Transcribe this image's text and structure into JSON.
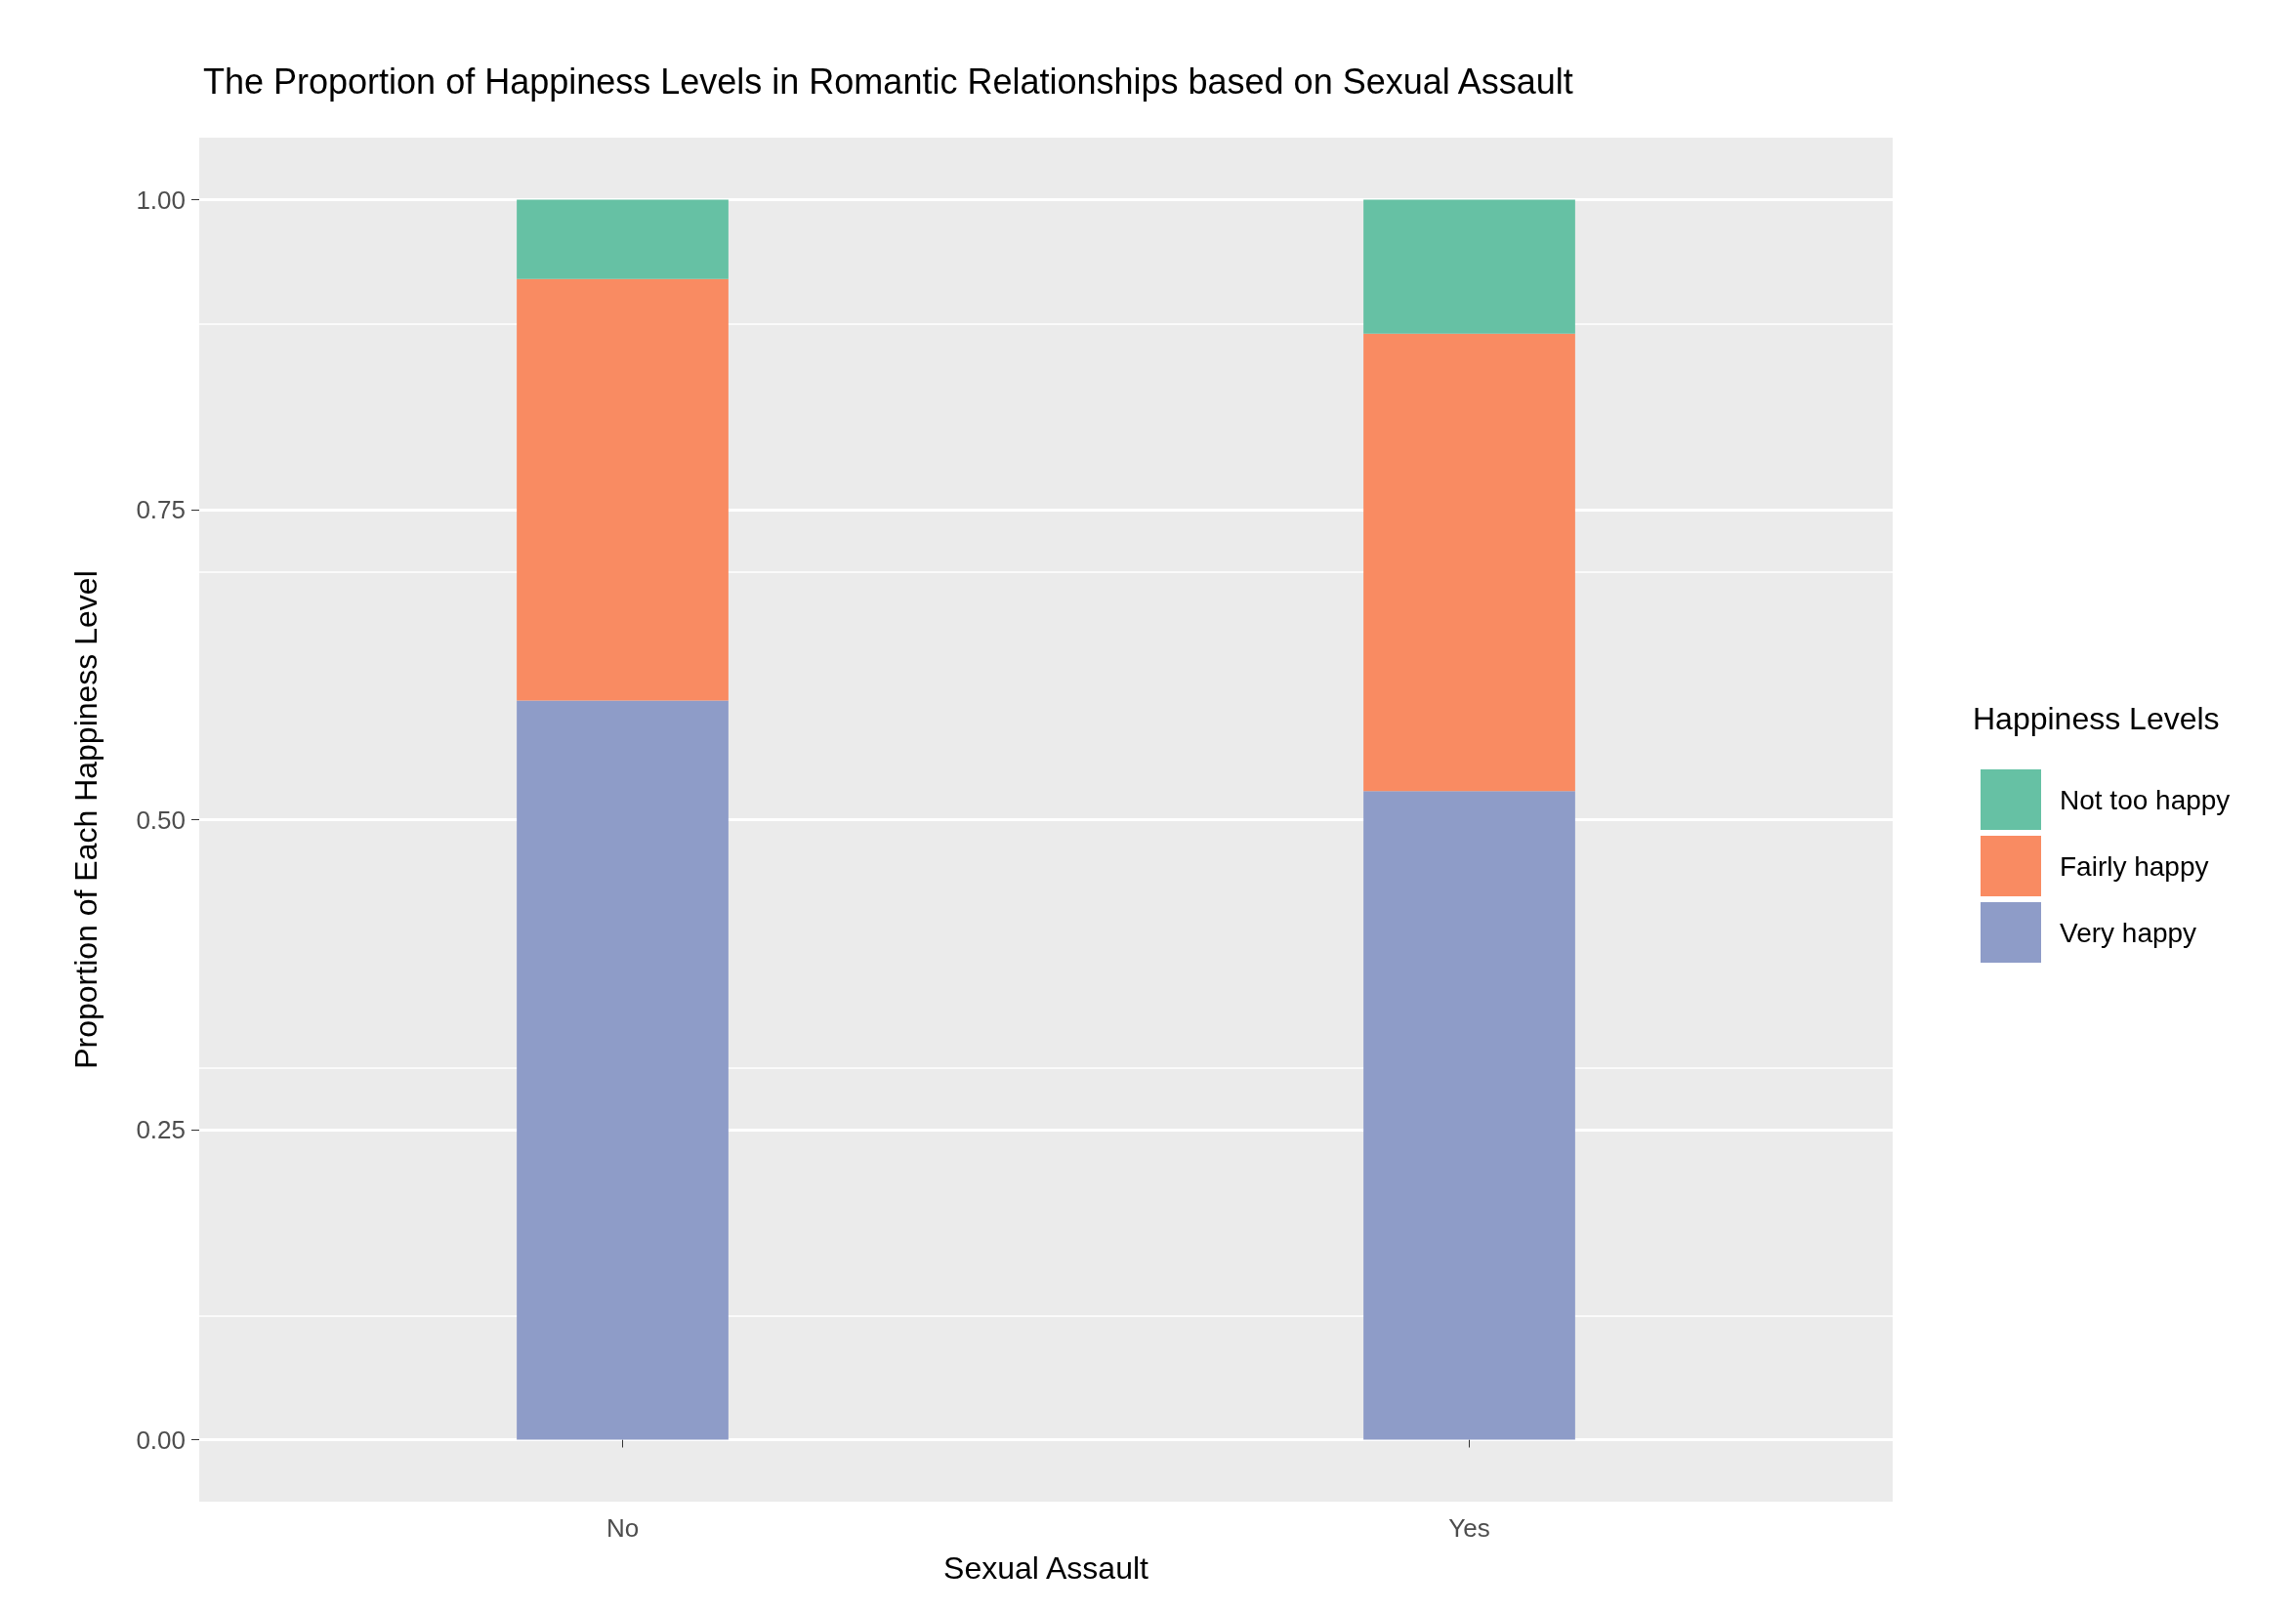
{
  "chart_data": {
    "type": "bar",
    "stacked": true,
    "title": "The Proportion of Happiness Levels in Romantic Relationships based on Sexual Assault",
    "xlabel": "Sexual Assault",
    "ylabel": "Proportion of Each Happiness Level",
    "legend_title": "Happiness Levels",
    "categories": [
      "No",
      "Yes"
    ],
    "series": [
      {
        "name": "Very happy",
        "color": "#8e9cc8",
        "values": [
          0.596,
          0.523
        ]
      },
      {
        "name": "Fairly happy",
        "color": "#f98b62",
        "values": [
          0.34,
          0.369
        ]
      },
      {
        "name": "Not too happy",
        "color": "#66c1a4",
        "values": [
          0.064,
          0.108
        ]
      }
    ],
    "ylim": [
      -0.05,
      1.05
    ],
    "yticks": [
      {
        "value": 0,
        "label": "0.00"
      },
      {
        "value": 0.25,
        "label": "0.25"
      },
      {
        "value": 0.5,
        "label": "0.50"
      },
      {
        "value": 0.75,
        "label": "0.75"
      },
      {
        "value": 1,
        "label": "1.00"
      }
    ],
    "grid": true,
    "legend": "right"
  }
}
